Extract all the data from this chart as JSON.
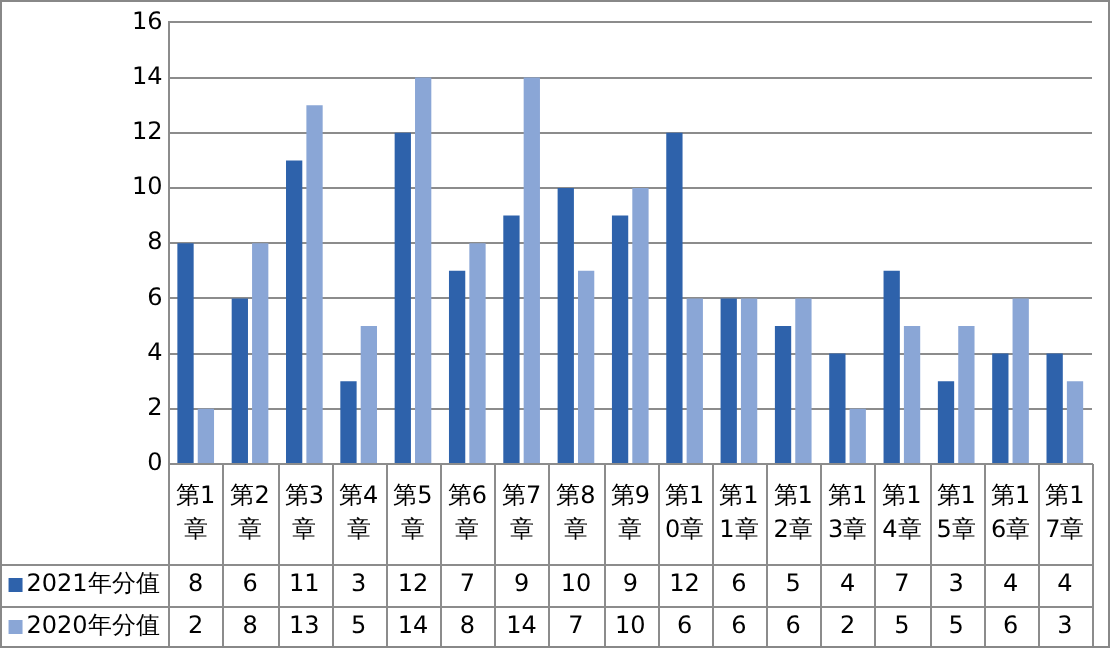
{
  "chart_data": {
    "type": "bar",
    "categories": [
      "第1章",
      "第2章",
      "第3章",
      "第4章",
      "第5章",
      "第6章",
      "第7章",
      "第8章",
      "第9章",
      "第10章",
      "第11章",
      "第12章",
      "第13章",
      "第14章",
      "第15章",
      "第16章",
      "第17章"
    ],
    "series": [
      {
        "name": "2021年分值",
        "color": "#2e62ab",
        "values": [
          8,
          6,
          11,
          3,
          12,
          7,
          9,
          10,
          9,
          12,
          6,
          5,
          4,
          7,
          3,
          4,
          4
        ]
      },
      {
        "name": "2020年分值",
        "color": "#8aa6d6",
        "values": [
          2,
          8,
          13,
          5,
          14,
          8,
          14,
          7,
          10,
          6,
          6,
          6,
          2,
          5,
          5,
          6,
          3
        ]
      }
    ],
    "ylim": [
      0,
      16
    ],
    "yticks": [
      0,
      2,
      4,
      6,
      8,
      10,
      12,
      14,
      16
    ],
    "grid": "y",
    "legend": "bottom",
    "data_labels": true
  }
}
